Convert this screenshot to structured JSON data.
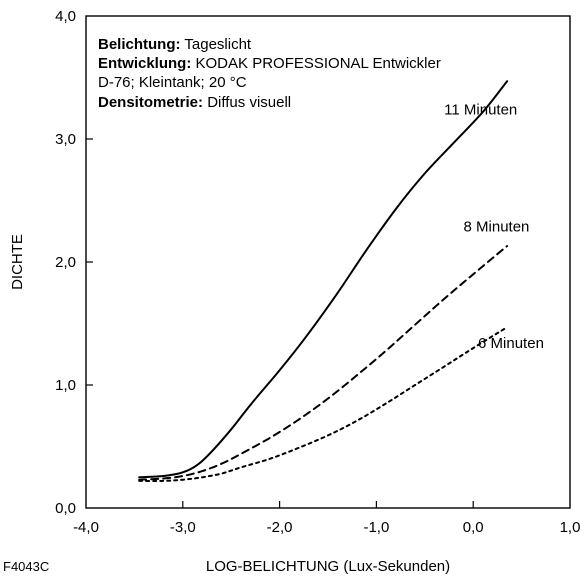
{
  "figure_id": "F4043C",
  "info": {
    "line1_label": "Belichtung:",
    "line1_value": " Tageslicht",
    "line2_label": "Entwicklung:",
    "line2_value": " KODAK PROFESSIONAL Entwickler",
    "line3_value": "D-76; Kleintank; 20 °C",
    "line4_label": "Densitometrie:",
    "line4_value": " Diffus visuell"
  },
  "chart_data": {
    "type": "line",
    "xlabel": "LOG-BELICHTUNG (Lux-Sekunden)",
    "ylabel": "DICHTE",
    "xlim": [
      -4.0,
      1.0
    ],
    "ylim": [
      0.0,
      4.0
    ],
    "xticks": [
      "-4,0",
      "-3,0",
      "-2,0",
      "-1,0",
      "0,0",
      "1,0"
    ],
    "yticks": [
      "0,0",
      "1,0",
      "2,0",
      "3,0",
      "4,0"
    ],
    "grid": false,
    "series": [
      {
        "name": "11 Minuten",
        "style": "solid",
        "x": [
          -3.45,
          -3.2,
          -3.0,
          -2.85,
          -2.7,
          -2.5,
          -2.3,
          -2.0,
          -1.7,
          -1.4,
          -1.1,
          -0.8,
          -0.5,
          -0.2,
          0.1,
          0.35
        ],
        "y": [
          0.25,
          0.26,
          0.29,
          0.35,
          0.46,
          0.64,
          0.84,
          1.12,
          1.42,
          1.75,
          2.1,
          2.43,
          2.72,
          2.97,
          3.22,
          3.47
        ]
      },
      {
        "name": "8 Minuten",
        "style": "dashed",
        "x": [
          -3.45,
          -3.2,
          -3.0,
          -2.8,
          -2.6,
          -2.4,
          -2.1,
          -1.8,
          -1.5,
          -1.2,
          -0.9,
          -0.6,
          -0.3,
          0.0,
          0.35
        ],
        "y": [
          0.23,
          0.24,
          0.26,
          0.3,
          0.36,
          0.44,
          0.57,
          0.72,
          0.89,
          1.08,
          1.28,
          1.49,
          1.7,
          1.9,
          2.13
        ]
      },
      {
        "name": "6 Minuten",
        "style": "dotted",
        "x": [
          -3.45,
          -3.2,
          -3.0,
          -2.8,
          -2.6,
          -2.4,
          -2.1,
          -1.8,
          -1.5,
          -1.2,
          -0.9,
          -0.6,
          -0.3,
          0.0,
          0.35
        ],
        "y": [
          0.22,
          0.22,
          0.23,
          0.25,
          0.28,
          0.33,
          0.4,
          0.49,
          0.59,
          0.71,
          0.85,
          1.0,
          1.15,
          1.3,
          1.47
        ]
      }
    ],
    "series_labels": [
      {
        "text": "11 Minuten",
        "x": -0.3,
        "y": 3.2
      },
      {
        "text": "8 Minuten",
        "x": -0.1,
        "y": 2.25
      },
      {
        "text": "6 Minuten",
        "x": 0.05,
        "y": 1.3
      }
    ]
  }
}
